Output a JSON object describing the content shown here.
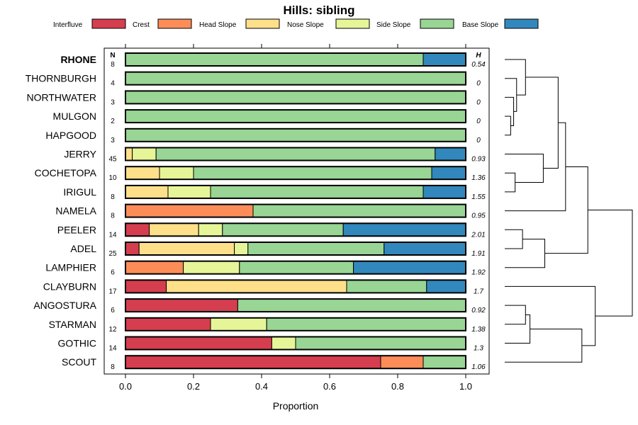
{
  "chart_data": {
    "type": "bar",
    "stacked": true,
    "orientation": "horizontal",
    "title": "Hills: sibling",
    "xlabel": "Proportion",
    "ylabel": "",
    "xlim": [
      0,
      1
    ],
    "xticks": [
      "0.0",
      "0.2",
      "0.4",
      "0.6",
      "0.8",
      "1.0"
    ],
    "n_header": "N",
    "h_header": "H",
    "highlighted_category": "RHONE",
    "legend_placement": "top",
    "categories": [
      "RHONE",
      "THORNBURGH",
      "NORTHWATER",
      "MULGON",
      "HAPGOOD",
      "JERRY",
      "COCHETOPA",
      "IRIGUL",
      "NAMELA",
      "PEELER",
      "ADEL",
      "LAMPHIER",
      "CLAYBURN",
      "ANGOSTURA",
      "STARMAN",
      "GOTHIC",
      "SCOUT"
    ],
    "n": [
      "8",
      "4",
      "3",
      "2",
      "3",
      "45",
      "10",
      "8",
      "8",
      "14",
      "25",
      "6",
      "17",
      "6",
      "12",
      "14",
      "8"
    ],
    "h": [
      "0.54",
      "0",
      "0",
      "0",
      "0",
      "0.93",
      "1.36",
      "1.55",
      "0.95",
      "2.01",
      "1.91",
      "1.92",
      "1.7",
      "0.92",
      "1.38",
      "1.3",
      "1.06"
    ],
    "series": [
      {
        "name": "Interfluve",
        "color": "#d53e4f",
        "values": [
          0,
          0,
          0,
          0,
          0,
          0,
          0,
          0,
          0,
          0.07,
          0.04,
          0,
          0.12,
          0.33,
          0.25,
          0.43,
          0.75
        ]
      },
      {
        "name": "Crest",
        "color": "#fc8d59",
        "values": [
          0,
          0,
          0,
          0,
          0,
          0,
          0,
          0,
          0.375,
          0,
          0,
          0.17,
          0,
          0,
          0,
          0,
          0.125
        ]
      },
      {
        "name": "Head Slope",
        "color": "#fee08b",
        "values": [
          0,
          0,
          0,
          0,
          0,
          0.02,
          0.1,
          0.125,
          0,
          0.145,
          0.28,
          0,
          0.53,
          0,
          0,
          0,
          0
        ]
      },
      {
        "name": "Nose Slope",
        "color": "#e6f598",
        "values": [
          0,
          0,
          0,
          0,
          0,
          0.07,
          0.1,
          0.125,
          0,
          0.07,
          0.04,
          0.165,
          0,
          0,
          0.165,
          0.07,
          0
        ]
      },
      {
        "name": "Side Slope",
        "color": "#99d594",
        "values": [
          0.875,
          1,
          1,
          1,
          1,
          0.82,
          0.7,
          0.625,
          0.625,
          0.355,
          0.4,
          0.335,
          0.235,
          0.67,
          0.585,
          0.5,
          0.125
        ]
      },
      {
        "name": "Base Slope",
        "color": "#3288bd",
        "values": [
          0.125,
          0,
          0,
          0,
          0,
          0.09,
          0.1,
          0.125,
          0,
          0.36,
          0.24,
          0.33,
          0.115,
          0,
          0,
          0,
          0
        ]
      }
    ],
    "dendrogram": {
      "description": "hierarchical clustering of the categories, drawn to the right of the panel",
      "leaves": [
        "RHONE",
        "THORNBURGH",
        "NORTHWATER",
        "MULGON",
        "HAPGOOD",
        "JERRY",
        "COCHETOPA",
        "IRIGUL",
        "NAMELA",
        "PEELER",
        "ADEL",
        "LAMPHIER",
        "CLAYBURN",
        "ANGOSTURA",
        "STARMAN",
        "GOTHIC",
        "SCOUT"
      ],
      "merges": [
        [
          3,
          4,
          0.04
        ],
        [
          2,
          17,
          0.06
        ],
        [
          1,
          18,
          0.08
        ],
        [
          0,
          19,
          0.14
        ],
        [
          6,
          7,
          0.07
        ],
        [
          5,
          21,
          0.26
        ],
        [
          20,
          22,
          0.36
        ],
        [
          23,
          8,
          0.41
        ],
        [
          9,
          10,
          0.12
        ],
        [
          25,
          11,
          0.27
        ],
        [
          24,
          26,
          0.56
        ],
        [
          13,
          14,
          0.14
        ],
        [
          28,
          15,
          0.17
        ],
        [
          29,
          16,
          0.52
        ],
        [
          12,
          30,
          0.61
        ],
        [
          27,
          31,
          0.86
        ]
      ]
    }
  }
}
